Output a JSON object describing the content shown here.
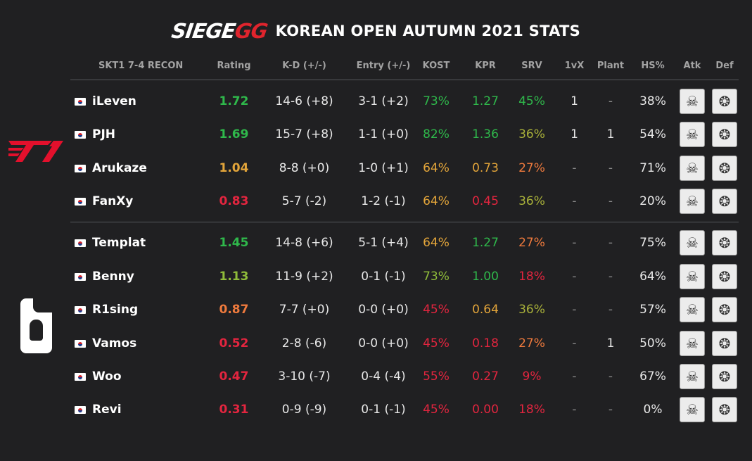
{
  "title": {
    "logo_main": "SIEGE",
    "logo_accent": "GG",
    "heading": "KOREAN OPEN AUTUMN 2021 STATS"
  },
  "columns": {
    "team": "SKT1 7-4 RECON",
    "rating": "Rating",
    "kd": "K-D (+/-)",
    "entry": "Entry (+/-)",
    "kost": "KOST",
    "kpr": "KPR",
    "srv": "SRV",
    "onevx": "1vX",
    "plant": "Plant",
    "hs": "HS%",
    "atk": "Atk",
    "def": "Def"
  },
  "team_logos": {
    "top": "t1-logo",
    "bottom": "rainbow-six-logo"
  },
  "colors": {
    "green": "#2fb84b",
    "lightgreen": "#8fbc3a",
    "olive": "#aab23a",
    "yellow": "#e3a53a",
    "orange": "#ef7a3d",
    "red": "#e3253f",
    "white": "#e8e8e8"
  },
  "players": [
    {
      "name": "iLeven",
      "rating": "1.72",
      "rating_c": "green",
      "kd": "14-6 (+8)",
      "entry": "3-1 (+2)",
      "kost": "73%",
      "kost_c": "green",
      "kpr": "1.27",
      "kpr_c": "green",
      "srv": "45%",
      "srv_c": "green",
      "onevx": "1",
      "plant": "-",
      "hs": "38%",
      "atk_icon": "operator-icon-atk",
      "def_icon": "operator-icon-def"
    },
    {
      "name": "PJH",
      "rating": "1.69",
      "rating_c": "green",
      "kd": "15-7 (+8)",
      "entry": "1-1 (+0)",
      "kost": "82%",
      "kost_c": "green",
      "kpr": "1.36",
      "kpr_c": "green",
      "srv": "36%",
      "srv_c": "olive",
      "onevx": "1",
      "plant": "1",
      "hs": "54%",
      "atk_icon": "operator-icon-atk",
      "def_icon": "operator-icon-def"
    },
    {
      "name": "Arukaze",
      "rating": "1.04",
      "rating_c": "yellow",
      "kd": "8-8 (+0)",
      "entry": "1-0 (+1)",
      "kost": "64%",
      "kost_c": "yellow",
      "kpr": "0.73",
      "kpr_c": "yellow",
      "srv": "27%",
      "srv_c": "orange",
      "onevx": "-",
      "plant": "-",
      "hs": "71%",
      "atk_icon": "operator-icon-atk",
      "def_icon": "operator-icon-def"
    },
    {
      "name": "FanXy",
      "rating": "0.83",
      "rating_c": "red",
      "kd": "5-7 (-2)",
      "entry": "1-2 (-1)",
      "kost": "64%",
      "kost_c": "yellow",
      "kpr": "0.45",
      "kpr_c": "red",
      "srv": "36%",
      "srv_c": "olive",
      "onevx": "-",
      "plant": "-",
      "hs": "20%",
      "atk_icon": "operator-icon-atk",
      "def_icon": "operator-icon-def"
    },
    {
      "name": "Templat",
      "rating": "1.45",
      "rating_c": "green",
      "kd": "14-8 (+6)",
      "entry": "5-1 (+4)",
      "kost": "64%",
      "kost_c": "yellow",
      "kpr": "1.27",
      "kpr_c": "green",
      "srv": "27%",
      "srv_c": "orange",
      "onevx": "-",
      "plant": "-",
      "hs": "75%",
      "atk_icon": "operator-icon-atk",
      "def_icon": "operator-icon-def"
    },
    {
      "name": "Benny",
      "rating": "1.13",
      "rating_c": "lightgreen",
      "kd": "11-9 (+2)",
      "entry": "0-1 (-1)",
      "kost": "73%",
      "kost_c": "lightgreen",
      "kpr": "1.00",
      "kpr_c": "green",
      "srv": "18%",
      "srv_c": "red",
      "onevx": "-",
      "plant": "-",
      "hs": "64%",
      "atk_icon": "operator-icon-atk",
      "def_icon": "operator-icon-def"
    },
    {
      "name": "R1sing",
      "rating": "0.87",
      "rating_c": "orange",
      "kd": "7-7 (+0)",
      "entry": "0-0 (+0)",
      "kost": "45%",
      "kost_c": "red",
      "kpr": "0.64",
      "kpr_c": "yellow",
      "srv": "36%",
      "srv_c": "olive",
      "onevx": "-",
      "plant": "-",
      "hs": "57%",
      "atk_icon": "operator-icon-atk",
      "def_icon": "operator-icon-def"
    },
    {
      "name": "Vamos",
      "rating": "0.52",
      "rating_c": "red",
      "kd": "2-8 (-6)",
      "entry": "0-0 (+0)",
      "kost": "45%",
      "kost_c": "red",
      "kpr": "0.18",
      "kpr_c": "red",
      "srv": "27%",
      "srv_c": "orange",
      "onevx": "-",
      "plant": "1",
      "hs": "50%",
      "atk_icon": "operator-icon-atk",
      "def_icon": "operator-icon-def"
    },
    {
      "name": "Woo",
      "rating": "0.47",
      "rating_c": "red",
      "kd": "3-10 (-7)",
      "entry": "0-4 (-4)",
      "kost": "55%",
      "kost_c": "red",
      "kpr": "0.27",
      "kpr_c": "red",
      "srv": "9%",
      "srv_c": "red",
      "onevx": "-",
      "plant": "-",
      "hs": "67%",
      "atk_icon": "operator-icon-atk",
      "def_icon": "operator-icon-def"
    },
    {
      "name": "Revi",
      "rating": "0.31",
      "rating_c": "red",
      "kd": "0-9 (-9)",
      "entry": "0-1 (-1)",
      "kost": "45%",
      "kost_c": "red",
      "kpr": "0.00",
      "kpr_c": "red",
      "srv": "18%",
      "srv_c": "red",
      "onevx": "-",
      "plant": "-",
      "hs": "0%",
      "atk_icon": "operator-icon-atk",
      "def_icon": "operator-icon-def"
    }
  ]
}
